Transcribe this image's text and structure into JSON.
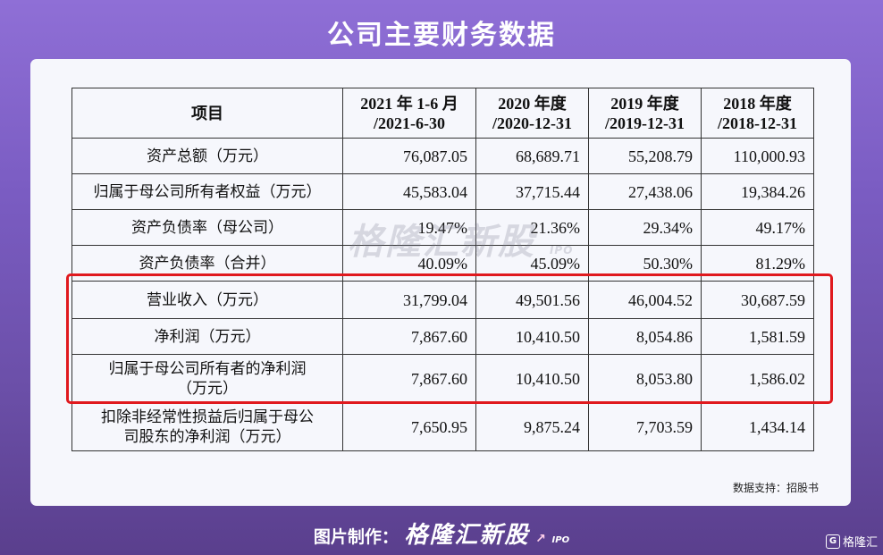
{
  "title": "公司主要财务数据",
  "table": {
    "headers": [
      "项目",
      "2021 年 1-6 月\n/2021-6-30",
      "2020 年度\n/2020-12-31",
      "2019 年度\n/2019-12-31",
      "2018 年度\n/2018-12-31"
    ],
    "rows": [
      {
        "label": "资产总额（万元）",
        "values": [
          "76,087.05",
          "68,689.71",
          "55,208.79",
          "110,000.93"
        ]
      },
      {
        "label": "归属于母公司所有者权益（万元）",
        "values": [
          "45,583.04",
          "37,715.44",
          "27,438.06",
          "19,384.26"
        ]
      },
      {
        "label": "资产负债率（母公司）",
        "values": [
          "19.47%",
          "21.36%",
          "29.34%",
          "49.17%"
        ]
      },
      {
        "label": "资产负债率（合并）",
        "values": [
          "40.09%",
          "45.09%",
          "50.30%",
          "81.29%"
        ]
      },
      {
        "label": "营业收入（万元）",
        "values": [
          "31,799.04",
          "49,501.56",
          "46,004.52",
          "30,687.59"
        ]
      },
      {
        "label": "净利润（万元）",
        "values": [
          "7,867.60",
          "10,410.50",
          "8,054.86",
          "1,581.59"
        ]
      },
      {
        "label": "归属于母公司所有者的净利润\n（万元）",
        "values": [
          "7,867.60",
          "10,410.50",
          "8,053.80",
          "1,586.02"
        ]
      },
      {
        "label": "扣除非经常性损益后归属于母公\n司股东的净利润（万元）",
        "values": [
          "7,650.95",
          "9,875.24",
          "7,703.59",
          "1,434.14"
        ]
      }
    ]
  },
  "watermark": {
    "brand": "格隆汇新股",
    "suffix": "IPO"
  },
  "source": "数据支持：招股书",
  "footer": {
    "prefix": "图片制作：",
    "brand": "格隆汇新股",
    "suffix": "IPO"
  },
  "corner_logo": {
    "glyph": "G",
    "text": "格隆汇"
  },
  "colors": {
    "highlight": "#e0191e",
    "background_top": "#8f6fd6",
    "background_bottom": "#5a3f8d",
    "card": "#f6f7fc"
  }
}
